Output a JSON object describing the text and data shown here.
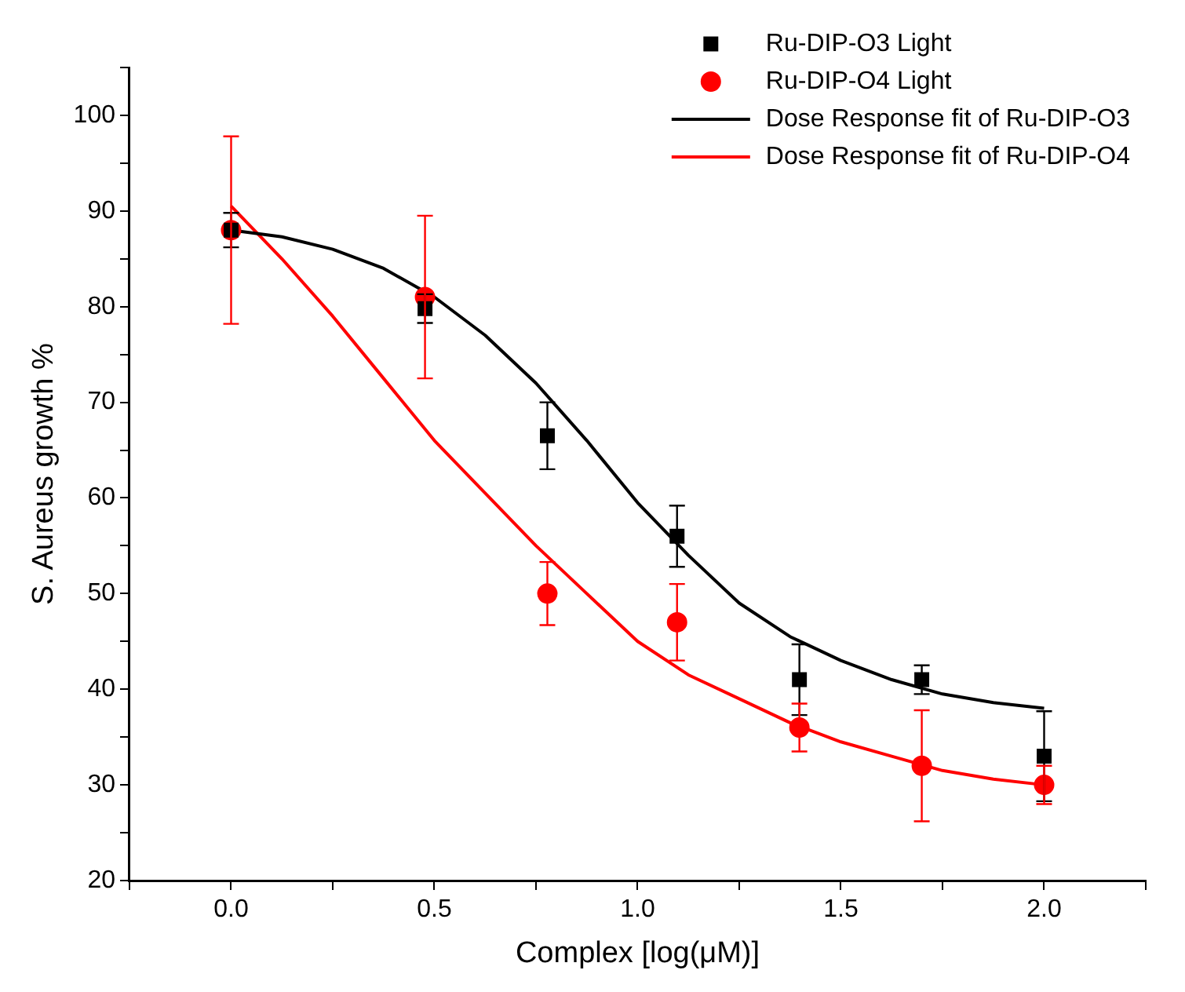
{
  "chart_data": {
    "type": "scatter",
    "xlabel": "Complex [log(μM)]",
    "ylabel": "S. Aureus growth %",
    "xlim": [
      -0.25,
      2.25
    ],
    "xticks": [
      {
        "value": -0.25,
        "label": null
      },
      {
        "value": 0,
        "label": "0.0"
      },
      {
        "value": 0.25,
        "label": null
      },
      {
        "value": 0.5,
        "label": "0.5"
      },
      {
        "value": 0.75,
        "label": null
      },
      {
        "value": 1,
        "label": "1.0"
      },
      {
        "value": 1.25,
        "label": null
      },
      {
        "value": 1.5,
        "label": "1.5"
      },
      {
        "value": 1.75,
        "label": null
      },
      {
        "value": 2,
        "label": "2.0"
      },
      {
        "value": 2.25,
        "label": null
      }
    ],
    "ylim": [
      20,
      105
    ],
    "yticks": [
      20,
      {
        "value": 25,
        "label": null
      },
      30,
      {
        "value": 35,
        "label": null
      },
      40,
      {
        "value": 45,
        "label": null
      },
      50,
      {
        "value": 55,
        "label": null
      },
      60,
      {
        "value": 65,
        "label": null
      },
      70,
      {
        "value": 75,
        "label": null
      },
      80,
      {
        "value": 85,
        "label": null
      },
      90,
      {
        "value": 95,
        "label": null
      },
      100,
      {
        "value": 105,
        "label": null
      }
    ],
    "grid": false,
    "legend": "top right",
    "series": [
      {
        "name": "Ru-DIP-O3 Light",
        "type": "scatter",
        "marker": "square",
        "color": "#000000",
        "x": [
          0,
          0.477,
          0.778,
          1.097,
          1.398,
          1.699,
          2.0
        ],
        "values": [
          88,
          79.8,
          66.5,
          56,
          41,
          41,
          33
        ],
        "errors": [
          1.8,
          1.5,
          3.5,
          3.2,
          3.7,
          1.5,
          4.7
        ]
      },
      {
        "name": "Ru-DIP-O4 Light",
        "type": "scatter",
        "marker": "circle",
        "color": "#ff0000",
        "x": [
          0,
          0.477,
          0.778,
          1.097,
          1.398,
          1.699,
          2.0
        ],
        "values": [
          88,
          81,
          50,
          47,
          36,
          32,
          30
        ],
        "errors": [
          9.8,
          8.5,
          3.3,
          4,
          2.5,
          5.8,
          2
        ]
      },
      {
        "name": "Dose Response fit of Ru-DIP-O3",
        "type": "line",
        "marker": "none",
        "line_style": "solid",
        "color": "#000000",
        "x": [
          0,
          0.125,
          0.25,
          0.375,
          0.5,
          0.625,
          0.75,
          0.875,
          1.0,
          1.125,
          1.25,
          1.375,
          1.5,
          1.625,
          1.75,
          1.875,
          2.0
        ],
        "values": [
          88,
          87.3,
          86,
          84,
          81,
          77,
          72,
          66,
          59.5,
          54,
          49,
          45.5,
          43,
          41,
          39.5,
          38.6,
          38
        ]
      },
      {
        "name": "Dose Response fit of Ru-DIP-O4",
        "type": "line",
        "marker": "none",
        "line_style": "solid",
        "color": "#ff0000",
        "x": [
          0,
          0.125,
          0.25,
          0.375,
          0.5,
          0.625,
          0.75,
          0.875,
          1.0,
          1.125,
          1.25,
          1.375,
          1.5,
          1.625,
          1.75,
          1.875,
          2.0
        ],
        "values": [
          90.5,
          85,
          79,
          72.5,
          66,
          60.5,
          55,
          50,
          45,
          41.5,
          39,
          36.5,
          34.5,
          33,
          31.5,
          30.6,
          30
        ]
      }
    ]
  }
}
